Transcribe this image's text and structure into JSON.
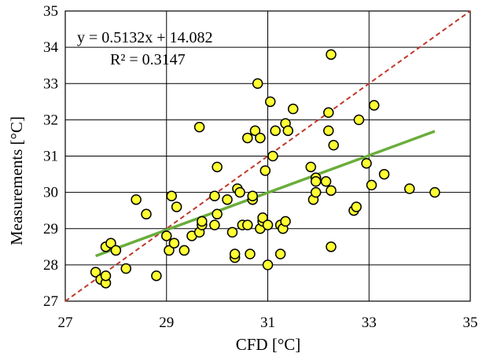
{
  "chart_data": {
    "type": "scatter",
    "title": "",
    "xlabel": "CFD [°C]",
    "ylabel": "Measurements [°C]",
    "xlim": [
      27,
      35
    ],
    "ylim": [
      27,
      35
    ],
    "x_ticks": [
      "27",
      "29",
      "31",
      "33",
      "35"
    ],
    "y_ticks": [
      "27",
      "28",
      "29",
      "30",
      "31",
      "32",
      "33",
      "34",
      "35"
    ],
    "grid": true,
    "annotation_line1": "y = 0.5132x + 14.082",
    "annotation_line2": "R² = 0.3147",
    "colors": {
      "marker_fill": "#ffff33",
      "marker_edge": "#000000",
      "trendline": "#6aad3b",
      "identity_line": "#c0392b"
    },
    "trendline": {
      "slope": 0.5132,
      "intercept": 14.082,
      "x_range": [
        27.6,
        34.3
      ]
    },
    "identity_line": {
      "x_range": [
        27,
        35
      ]
    },
    "points": [
      {
        "x": 27.6,
        "y": 27.8
      },
      {
        "x": 27.7,
        "y": 27.6
      },
      {
        "x": 27.8,
        "y": 27.5
      },
      {
        "x": 27.8,
        "y": 27.7
      },
      {
        "x": 27.8,
        "y": 28.5
      },
      {
        "x": 27.9,
        "y": 28.6
      },
      {
        "x": 28.0,
        "y": 28.4
      },
      {
        "x": 28.2,
        "y": 27.9
      },
      {
        "x": 28.4,
        "y": 29.8
      },
      {
        "x": 28.6,
        "y": 29.4
      },
      {
        "x": 28.8,
        "y": 27.7
      },
      {
        "x": 29.0,
        "y": 28.8
      },
      {
        "x": 29.05,
        "y": 28.4
      },
      {
        "x": 29.1,
        "y": 29.9
      },
      {
        "x": 29.15,
        "y": 28.6
      },
      {
        "x": 29.2,
        "y": 29.6
      },
      {
        "x": 29.35,
        "y": 28.4
      },
      {
        "x": 29.5,
        "y": 28.8
      },
      {
        "x": 29.65,
        "y": 28.9
      },
      {
        "x": 29.7,
        "y": 29.1
      },
      {
        "x": 29.65,
        "y": 31.8
      },
      {
        "x": 29.7,
        "y": 29.2
      },
      {
        "x": 29.95,
        "y": 29.1
      },
      {
        "x": 29.95,
        "y": 29.9
      },
      {
        "x": 30.0,
        "y": 30.7
      },
      {
        "x": 30.0,
        "y": 29.4
      },
      {
        "x": 30.2,
        "y": 29.8
      },
      {
        "x": 30.3,
        "y": 28.9
      },
      {
        "x": 30.35,
        "y": 28.2
      },
      {
        "x": 30.35,
        "y": 28.3
      },
      {
        "x": 30.4,
        "y": 30.1
      },
      {
        "x": 30.45,
        "y": 30.0
      },
      {
        "x": 30.5,
        "y": 29.1
      },
      {
        "x": 30.6,
        "y": 29.1
      },
      {
        "x": 30.6,
        "y": 31.5
      },
      {
        "x": 30.65,
        "y": 28.3
      },
      {
        "x": 30.7,
        "y": 29.8
      },
      {
        "x": 30.7,
        "y": 29.9
      },
      {
        "x": 30.75,
        "y": 31.7
      },
      {
        "x": 30.8,
        "y": 33.0
      },
      {
        "x": 30.85,
        "y": 31.5
      },
      {
        "x": 30.85,
        "y": 29.0
      },
      {
        "x": 30.9,
        "y": 29.2
      },
      {
        "x": 30.9,
        "y": 29.3
      },
      {
        "x": 30.95,
        "y": 30.6
      },
      {
        "x": 31.0,
        "y": 29.1
      },
      {
        "x": 31.0,
        "y": 28.0
      },
      {
        "x": 31.05,
        "y": 32.5
      },
      {
        "x": 31.1,
        "y": 31.0
      },
      {
        "x": 31.15,
        "y": 31.7
      },
      {
        "x": 31.25,
        "y": 29.1
      },
      {
        "x": 31.25,
        "y": 28.3
      },
      {
        "x": 31.3,
        "y": 29.0
      },
      {
        "x": 31.35,
        "y": 29.2
      },
      {
        "x": 31.35,
        "y": 31.9
      },
      {
        "x": 31.4,
        "y": 31.7
      },
      {
        "x": 31.5,
        "y": 32.3
      },
      {
        "x": 31.85,
        "y": 30.7
      },
      {
        "x": 31.9,
        "y": 29.8
      },
      {
        "x": 31.95,
        "y": 30.0
      },
      {
        "x": 31.95,
        "y": 30.4
      },
      {
        "x": 31.95,
        "y": 30.3
      },
      {
        "x": 32.15,
        "y": 30.3
      },
      {
        "x": 32.2,
        "y": 32.2
      },
      {
        "x": 32.2,
        "y": 31.7
      },
      {
        "x": 32.25,
        "y": 33.8
      },
      {
        "x": 32.25,
        "y": 30.05
      },
      {
        "x": 32.25,
        "y": 28.5
      },
      {
        "x": 32.3,
        "y": 31.3
      },
      {
        "x": 32.7,
        "y": 29.5
      },
      {
        "x": 32.75,
        "y": 29.6
      },
      {
        "x": 32.8,
        "y": 32.0
      },
      {
        "x": 32.95,
        "y": 30.8
      },
      {
        "x": 33.05,
        "y": 30.2
      },
      {
        "x": 33.1,
        "y": 32.4
      },
      {
        "x": 33.3,
        "y": 30.5
      },
      {
        "x": 33.8,
        "y": 30.1
      },
      {
        "x": 34.3,
        "y": 30.0
      }
    ]
  }
}
